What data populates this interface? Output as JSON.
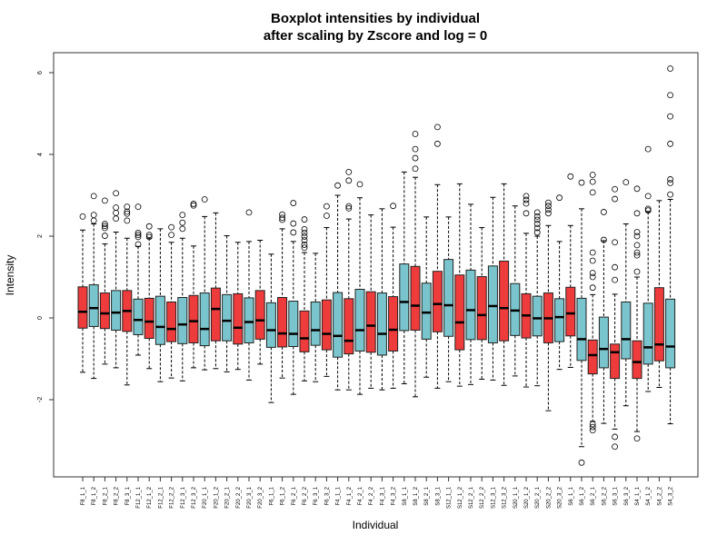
{
  "chart_data": {
    "type": "boxplot",
    "title": [
      "Boxplot intensities by individual",
      "after scaling by Zscore and log = 0"
    ],
    "xlabel": "Individual",
    "ylabel": "Intensity",
    "ylim": [
      -4,
      6.5
    ],
    "yticks": [
      -2,
      0,
      2,
      4,
      6
    ],
    "grid": false,
    "colors": [
      "#EE3B3B",
      "#7AC5CD"
    ],
    "boxes": [
      {
        "label": "F8_1_1",
        "low": -1.33,
        "q1": -0.25,
        "median": 0.15,
        "q3": 0.76,
        "high": 2.15,
        "outliers": [
          2.48
        ]
      },
      {
        "label": "F8_1_2",
        "low": -1.48,
        "q1": -0.21,
        "median": 0.24,
        "q3": 0.81,
        "high": 2.3,
        "outliers": [
          2.98,
          2.52,
          2.38
        ]
      },
      {
        "label": "F8_2_1",
        "low": -1.13,
        "q1": -0.26,
        "median": 0.11,
        "q3": 0.61,
        "high": 1.81,
        "outliers": [
          2.87,
          2.3,
          2.25,
          2.2,
          2.01
        ]
      },
      {
        "label": "F8_2_2",
        "low": -1.22,
        "q1": -0.3,
        "median": 0.13,
        "q3": 0.67,
        "high": 2.1,
        "outliers": [
          3.05,
          2.7,
          2.57,
          2.43
        ]
      },
      {
        "label": "F8_3_1",
        "low": -1.64,
        "q1": -0.33,
        "median": 0.17,
        "q3": 0.67,
        "high": 1.95,
        "outliers": [
          2.72,
          2.6,
          2.55,
          2.38
        ]
      },
      {
        "label": "F12_1_1",
        "low": -0.91,
        "q1": -0.41,
        "median": -0.05,
        "q3": 0.46,
        "high": 1.75,
        "outliers": [
          2.72,
          2.08,
          2.03,
          1.98,
          1.8
        ]
      },
      {
        "label": "F12_1_2",
        "low": -1.24,
        "q1": -0.5,
        "median": -0.09,
        "q3": 0.48,
        "high": 1.95,
        "outliers": [
          2.24,
          2.03,
          1.98
        ]
      },
      {
        "label": "F12_2_1",
        "low": -1.56,
        "q1": -0.65,
        "median": -0.22,
        "q3": 0.53,
        "high": 2.18,
        "outliers": []
      },
      {
        "label": "F12_2_2",
        "low": -1.47,
        "q1": -0.58,
        "median": -0.27,
        "q3": 0.39,
        "high": 1.85,
        "outliers": [
          2.22,
          2.03
        ]
      },
      {
        "label": "F12_3_1",
        "low": -1.54,
        "q1": -0.63,
        "median": -0.16,
        "q3": 0.5,
        "high": 1.95,
        "outliers": [
          2.52,
          2.33,
          2.18
        ]
      },
      {
        "label": "F12_3_2",
        "low": -1.22,
        "q1": -0.61,
        "median": -0.08,
        "q3": 0.55,
        "high": 1.76,
        "outliers": [
          2.79,
          2.75
        ]
      },
      {
        "label": "F20_1_1",
        "low": -1.27,
        "q1": -0.68,
        "median": -0.27,
        "q3": 0.61,
        "high": 2.48,
        "outliers": [
          2.9
        ]
      },
      {
        "label": "F20_1_2",
        "low": -1.24,
        "q1": -0.56,
        "median": 0.22,
        "q3": 0.73,
        "high": 2.57,
        "outliers": []
      },
      {
        "label": "F20_2_1",
        "low": -1.32,
        "q1": -0.56,
        "median": -0.07,
        "q3": 0.57,
        "high": 2.01,
        "outliers": []
      },
      {
        "label": "F20_2_2",
        "low": -1.26,
        "q1": -0.64,
        "median": -0.24,
        "q3": 0.59,
        "high": 1.85,
        "outliers": []
      },
      {
        "label": "F20_3_1",
        "low": -1.52,
        "q1": -0.61,
        "median": -0.1,
        "q3": 0.49,
        "high": 1.87,
        "outliers": [
          2.58
        ]
      },
      {
        "label": "F20_3_2",
        "low": -1.13,
        "q1": -0.52,
        "median": -0.06,
        "q3": 0.67,
        "high": 1.9,
        "outliers": []
      },
      {
        "label": "F6_1_1",
        "low": -2.07,
        "q1": -0.72,
        "median": -0.3,
        "q3": 0.37,
        "high": 1.56,
        "outliers": []
      },
      {
        "label": "F6_1_2",
        "low": -1.47,
        "q1": -0.71,
        "median": -0.38,
        "q3": 0.5,
        "high": 2.18,
        "outliers": [
          2.53,
          2.45,
          2.4
        ]
      },
      {
        "label": "F6_2_1",
        "low": -1.87,
        "q1": -0.7,
        "median": -0.39,
        "q3": 0.41,
        "high": 1.87,
        "outliers": [
          2.81,
          2.31,
          2.09
        ]
      },
      {
        "label": "F6_2_2",
        "low": -1.54,
        "q1": -0.83,
        "median": -0.5,
        "q3": 0.17,
        "high": 1.6,
        "outliers": [
          2.41,
          2.17,
          2.08,
          1.99,
          1.9,
          1.79,
          1.72
        ]
      },
      {
        "label": "F6_3_1",
        "low": -1.56,
        "q1": -0.67,
        "median": -0.3,
        "q3": 0.39,
        "high": 1.58,
        "outliers": []
      },
      {
        "label": "F6_3_2",
        "low": -1.43,
        "q1": -0.78,
        "median": -0.39,
        "q3": 0.44,
        "high": 2.21,
        "outliers": [
          2.73,
          2.5
        ]
      },
      {
        "label": "F4_1_1",
        "low": -1.76,
        "q1": -0.96,
        "median": -0.44,
        "q3": 0.62,
        "high": 3.0,
        "outliers": [
          3.24
        ]
      },
      {
        "label": "F4_1_2",
        "low": -1.76,
        "q1": -0.88,
        "median": -0.56,
        "q3": 0.47,
        "high": 2.42,
        "outliers": [
          3.57,
          3.36,
          2.73,
          2.68
        ]
      },
      {
        "label": "F4_2_1",
        "low": -1.87,
        "q1": -0.81,
        "median": -0.3,
        "q3": 0.7,
        "high": 2.94,
        "outliers": [
          3.27
        ]
      },
      {
        "label": "F4_2_2",
        "low": -1.72,
        "q1": -0.84,
        "median": -0.19,
        "q3": 0.64,
        "high": 2.52,
        "outliers": []
      },
      {
        "label": "F4_3_1",
        "low": -1.76,
        "q1": -0.91,
        "median": -0.39,
        "q3": 0.61,
        "high": 2.67,
        "outliers": []
      },
      {
        "label": "F4_3_2",
        "low": -1.72,
        "q1": -0.81,
        "median": -0.29,
        "q3": 0.52,
        "high": 2.22,
        "outliers": [
          2.74
        ]
      },
      {
        "label": "S8_1_1",
        "low": -1.61,
        "q1": -0.31,
        "median": 0.39,
        "q3": 1.32,
        "high": 3.57,
        "outliers": []
      },
      {
        "label": "S8_1_2",
        "low": -1.93,
        "q1": -0.3,
        "median": 0.3,
        "q3": 1.26,
        "high": 3.44,
        "outliers": [
          4.5,
          4.13,
          3.91,
          3.65
        ]
      },
      {
        "label": "S8_2_1",
        "low": -1.45,
        "q1": -0.52,
        "median": 0.13,
        "q3": 0.85,
        "high": 2.47,
        "outliers": []
      },
      {
        "label": "S8_3_1",
        "low": -1.72,
        "q1": -0.34,
        "median": 0.34,
        "q3": 1.14,
        "high": 3.26,
        "outliers": [
          4.67,
          4.26
        ]
      },
      {
        "label": "S12_1_1",
        "low": -1.56,
        "q1": -0.45,
        "median": 0.31,
        "q3": 1.43,
        "high": 2.47,
        "outliers": []
      },
      {
        "label": "S12_1_2",
        "low": -1.67,
        "q1": -0.78,
        "median": -0.11,
        "q3": 1.05,
        "high": 3.28,
        "outliers": []
      },
      {
        "label": "S12_2_1",
        "low": -1.63,
        "q1": -0.53,
        "median": 0.19,
        "q3": 1.17,
        "high": 2.78,
        "outliers": []
      },
      {
        "label": "S12_2_2",
        "low": -1.5,
        "q1": -0.53,
        "median": 0.07,
        "q3": 1.01,
        "high": 2.21,
        "outliers": []
      },
      {
        "label": "S12_3_1",
        "low": -1.52,
        "q1": -0.61,
        "median": 0.29,
        "q3": 1.27,
        "high": 2.95,
        "outliers": []
      },
      {
        "label": "S12_3_2",
        "low": -1.65,
        "q1": -0.56,
        "median": 0.24,
        "q3": 1.39,
        "high": 3.28,
        "outliers": []
      },
      {
        "label": "S20_1_1",
        "low": -1.42,
        "q1": -0.43,
        "median": 0.18,
        "q3": 0.84,
        "high": 2.74,
        "outliers": []
      },
      {
        "label": "S20_1_2",
        "low": -1.69,
        "q1": -0.49,
        "median": 0.06,
        "q3": 0.59,
        "high": 2.07,
        "outliers": [
          2.98,
          2.89,
          2.8,
          2.56
        ]
      },
      {
        "label": "S20_2_1",
        "low": -1.66,
        "q1": -0.44,
        "median": -0.01,
        "q3": 0.53,
        "high": 2.0,
        "outliers": [
          2.58,
          2.48,
          2.4,
          2.3,
          2.2,
          2.09
        ]
      },
      {
        "label": "S20_2_2",
        "low": -2.27,
        "q1": -0.61,
        "median": -0.01,
        "q3": 0.61,
        "high": 2.26,
        "outliers": [
          2.82,
          2.74,
          2.65,
          2.56
        ]
      },
      {
        "label": "S20_3_2",
        "low": -1.26,
        "q1": -0.58,
        "median": 0.02,
        "q3": 0.47,
        "high": 1.87,
        "outliers": [
          2.94
        ]
      },
      {
        "label": "S6_1_1",
        "low": -1.21,
        "q1": -0.44,
        "median": 0.11,
        "q3": 0.75,
        "high": 2.26,
        "outliers": [
          3.46
        ]
      },
      {
        "label": "S6_1_2",
        "low": -3.15,
        "q1": -1.04,
        "median": -0.52,
        "q3": 0.48,
        "high": 2.67,
        "outliers": [
          3.31,
          -3.54
        ]
      },
      {
        "label": "S6_2_1",
        "low": -2.53,
        "q1": -1.37,
        "median": -0.91,
        "q3": -0.54,
        "high": 0.57,
        "outliers": [
          3.5,
          3.33,
          3.07,
          1.6,
          1.4,
          1.1,
          1.0,
          0.74,
          -2.6,
          -2.67,
          -2.75
        ]
      },
      {
        "label": "S6_2_2",
        "low": -2.58,
        "q1": -1.22,
        "median": -0.76,
        "q3": 0.02,
        "high": 1.89,
        "outliers": [
          2.59,
          1.91
        ]
      },
      {
        "label": "S6_3_1",
        "low": -2.72,
        "q1": -1.48,
        "median": -0.84,
        "q3": -0.64,
        "high": 0.58,
        "outliers": [
          3.15,
          2.91,
          1.85,
          1.24,
          0.93,
          -2.91,
          -3.15
        ]
      },
      {
        "label": "S6_3_2",
        "low": -2.15,
        "q1": -1.0,
        "median": -0.52,
        "q3": 0.39,
        "high": 2.3,
        "outliers": [
          3.32
        ]
      },
      {
        "label": "S4_1_1",
        "low": -2.78,
        "q1": -1.48,
        "median": -1.08,
        "q3": -0.56,
        "high": 1.0,
        "outliers": [
          3.16,
          2.56,
          2.1,
          2.0,
          1.78,
          1.6,
          1.53,
          1.13,
          -2.95
        ]
      },
      {
        "label": "S4_1_2",
        "low": -1.8,
        "q1": -1.13,
        "median": -0.72,
        "q3": 0.36,
        "high": 2.59,
        "outliers": [
          4.13,
          2.98,
          2.67,
          2.63
        ]
      },
      {
        "label": "S4_2_2",
        "low": -1.7,
        "q1": -1.05,
        "median": -0.65,
        "q3": 0.74,
        "high": 2.87,
        "outliers": []
      },
      {
        "label": "S4_3_2",
        "low": -2.59,
        "q1": -1.22,
        "median": -0.7,
        "q3": 0.46,
        "high": 2.9,
        "outliers": [
          6.1,
          5.45,
          4.93,
          4.26,
          3.39,
          3.3,
          3.02
        ]
      }
    ]
  }
}
